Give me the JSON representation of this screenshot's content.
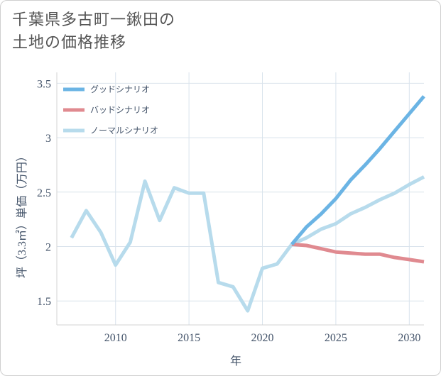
{
  "chart_data": {
    "type": "line",
    "title": [
      "千葉県多古町一鍬田の",
      "土地の価格推移"
    ],
    "xlabel": "年",
    "ylabel": "坪（3.3㎡）単価（万円）",
    "xlim": [
      2006,
      2031
    ],
    "ylim": [
      1.28,
      3.6
    ],
    "xticks": [
      2010,
      2015,
      2020,
      2025,
      2030
    ],
    "yticks": [
      1.5,
      2,
      2.5,
      3,
      3.5
    ],
    "yticklabels": [
      "1.5",
      "2",
      "2.5",
      "3",
      "3.5"
    ],
    "grid": true,
    "legend_position": "top-left",
    "series": [
      {
        "name": "グッドシナリオ",
        "color": "#6bb4e4",
        "x": [
          2022,
          2023,
          2024,
          2025,
          2026,
          2027,
          2028,
          2029,
          2030,
          2031
        ],
        "values": [
          2.02,
          2.18,
          2.3,
          2.44,
          2.61,
          2.75,
          2.9,
          3.06,
          3.22,
          3.38
        ]
      },
      {
        "name": "バッドシナリオ",
        "color": "#e08a90",
        "x": [
          2022,
          2023,
          2024,
          2025,
          2026,
          2027,
          2028,
          2029,
          2030,
          2031
        ],
        "values": [
          2.02,
          2.01,
          1.98,
          1.95,
          1.94,
          1.93,
          1.93,
          1.9,
          1.88,
          1.86
        ]
      },
      {
        "name": "ノーマルシナリオ",
        "color": "#b7dbec",
        "x": [
          2007,
          2008,
          2009,
          2010,
          2011,
          2012,
          2013,
          2014,
          2015,
          2016,
          2017,
          2018,
          2019,
          2020,
          2021,
          2022,
          2023,
          2024,
          2025,
          2026,
          2027,
          2028,
          2029,
          2030,
          2031
        ],
        "values": [
          2.08,
          2.33,
          2.13,
          1.83,
          2.04,
          2.6,
          2.24,
          2.54,
          2.49,
          2.49,
          1.67,
          1.63,
          1.41,
          1.8,
          1.84,
          2.02,
          2.08,
          2.16,
          2.21,
          2.3,
          2.36,
          2.43,
          2.49,
          2.57,
          2.64
        ]
      }
    ]
  }
}
